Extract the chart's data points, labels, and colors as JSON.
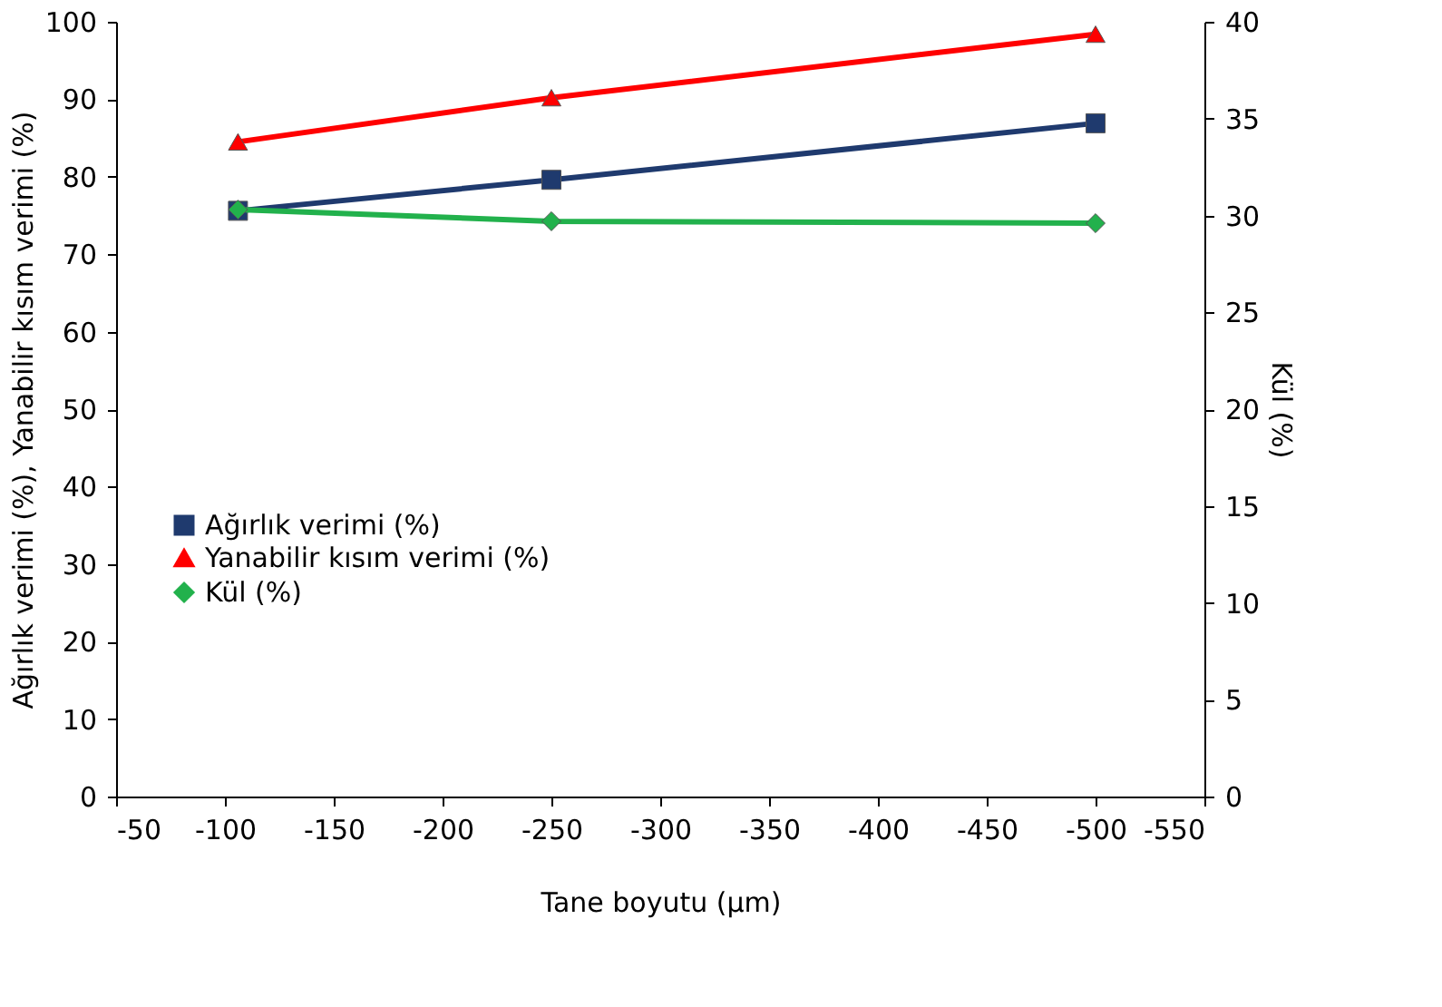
{
  "chart_data": {
    "type": "line",
    "xlabel": "Tane boyutu (µm)",
    "ylabel": "Ağırlık verimi (%), Yanabilir kısım verimi (%)",
    "y2label": "Kül (%)",
    "x": [
      -106,
      -250,
      -500
    ],
    "xlim": [
      -50,
      -550
    ],
    "xticks": [
      -50,
      -100,
      -150,
      -200,
      -250,
      -300,
      -350,
      -400,
      -450,
      -500,
      -550
    ],
    "ylim": [
      0,
      100
    ],
    "yticks": [
      0,
      10,
      20,
      30,
      40,
      50,
      60,
      70,
      80,
      90,
      100
    ],
    "y2lim": [
      0,
      40
    ],
    "y2ticks": [
      0,
      5,
      10,
      15,
      20,
      25,
      30,
      35,
      40
    ],
    "grid": false,
    "legend": "left",
    "series": [
      {
        "name": "Ağırlık verimi (%)",
        "color": "#1f3a6e",
        "marker": "square",
        "values": [
          75.6,
          79.6,
          86.9
        ]
      },
      {
        "name": "Yanabilir kısım verimi (%)",
        "color": "#ff0000",
        "marker": "triangle",
        "values": [
          84.5,
          90.2,
          98.4
        ]
      },
      {
        "name": "Kül (%)",
        "color": "#22b14c",
        "marker": "diamond",
        "axis": "y2",
        "values": [
          30.3,
          29.7,
          29.6
        ]
      }
    ]
  }
}
